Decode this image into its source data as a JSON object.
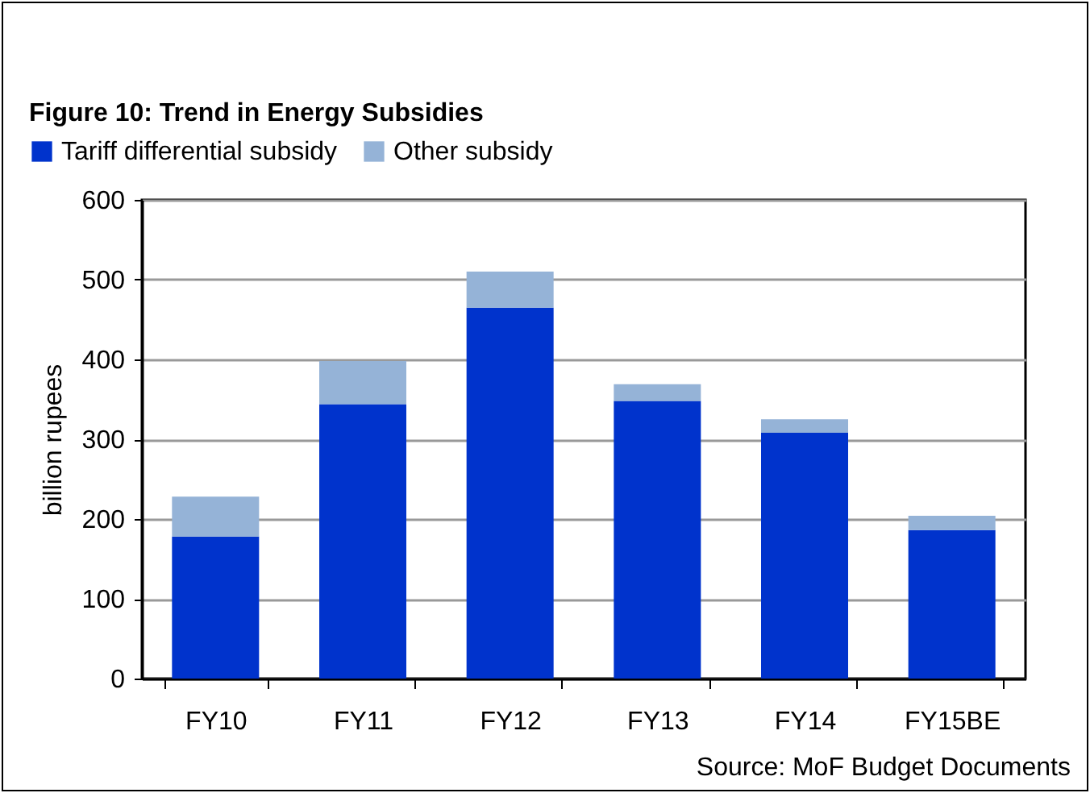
{
  "chart_data": {
    "type": "bar",
    "title": "Figure 10: Trend in Energy Subsidies",
    "ylabel": "billion rupees",
    "categories": [
      "FY10",
      "FY11",
      "FY12",
      "FY13",
      "FY14",
      "FY15BE"
    ],
    "series": [
      {
        "name": "Tariff differential subsidy",
        "color": "#0033cc",
        "values": [
          178,
          344,
          465,
          348,
          308,
          186
        ]
      },
      {
        "name": "Other subsidy",
        "color": "#95b3d7",
        "values": [
          50,
          54,
          45,
          21,
          17,
          18
        ]
      }
    ],
    "stacked": true,
    "ylim": [
      0,
      600
    ],
    "yticks": [
      0,
      100,
      200,
      300,
      400,
      500,
      600
    ],
    "grid": "y",
    "legend": "top left",
    "annotations": [
      "Source: MoF Budget Documents"
    ]
  }
}
